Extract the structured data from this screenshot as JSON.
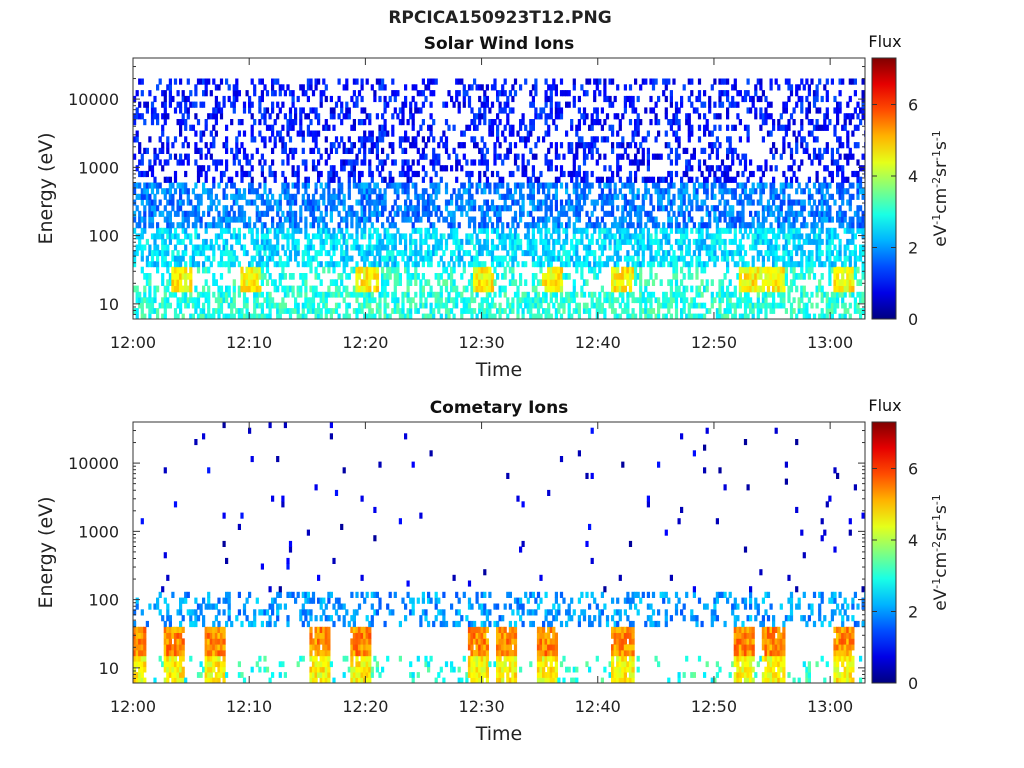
{
  "figure": {
    "title": "RPCICA150923T12.PNG"
  },
  "colorbar": {
    "label": "Flux",
    "unit_base": "eV",
    "unit_parts": [
      "eV",
      "-1",
      "cm",
      "-2",
      "sr",
      "-1",
      "s",
      "-1"
    ],
    "ticks": [
      "0",
      "2",
      "4",
      "6"
    ],
    "range": [
      0,
      7.3
    ],
    "colormap": "jet"
  },
  "chart_data": [
    {
      "type": "heatmap",
      "title": "Solar Wind Ions",
      "xlabel": "Time",
      "ylabel": "Energy (eV)",
      "x_ticks": [
        "12:00",
        "12:10",
        "12:20",
        "12:30",
        "12:40",
        "12:50",
        "13:00"
      ],
      "xlim": [
        "12:00",
        "13:03"
      ],
      "y_scale": "log",
      "y_ticks": [
        "10",
        "100",
        "1000",
        "10000"
      ],
      "ylim": [
        6,
        40000
      ],
      "colorbar_ticks": [
        "0",
        "2",
        "4",
        "6"
      ],
      "pattern": "dense",
      "enhancement_minutes": [
        4,
        10,
        20,
        30,
        36,
        42,
        53,
        55,
        61
      ],
      "layers": [
        {
          "emin": 6,
          "emax": 15,
          "flux": 3.0
        },
        {
          "emin": 15,
          "emax": 35,
          "flux": 3.0
        },
        {
          "emin": 35,
          "emax": 130,
          "flux": 2.5
        },
        {
          "emin": 130,
          "emax": 600,
          "flux": 1.8
        },
        {
          "emin": 600,
          "emax": 20000,
          "flux": 1.0
        }
      ]
    },
    {
      "type": "heatmap",
      "title": "Cometary Ions",
      "xlabel": "Time",
      "ylabel": "Energy (eV)",
      "x_ticks": [
        "12:00",
        "12:10",
        "12:20",
        "12:30",
        "12:40",
        "12:50",
        "13:00"
      ],
      "xlim": [
        "12:00",
        "13:03"
      ],
      "y_scale": "log",
      "y_ticks": [
        "10",
        "100",
        "1000",
        "10000"
      ],
      "ylim": [
        6,
        40000
      ],
      "colorbar_ticks": [
        "0",
        "2",
        "4",
        "6"
      ],
      "pattern": "sparse",
      "enhancement_minutes": [
        0,
        3.5,
        7,
        16,
        19.5,
        29.5,
        32,
        35.5,
        42,
        52.5,
        55,
        61
      ],
      "layers": [
        {
          "emin": 6,
          "emax": 15,
          "flux": 3.0
        },
        {
          "emin": 15,
          "emax": 40,
          "flux": 3.5
        },
        {
          "emin": 40,
          "emax": 130,
          "flux": 2.0
        },
        {
          "emin": 130,
          "emax": 40000,
          "flux": 0.6
        }
      ]
    }
  ]
}
